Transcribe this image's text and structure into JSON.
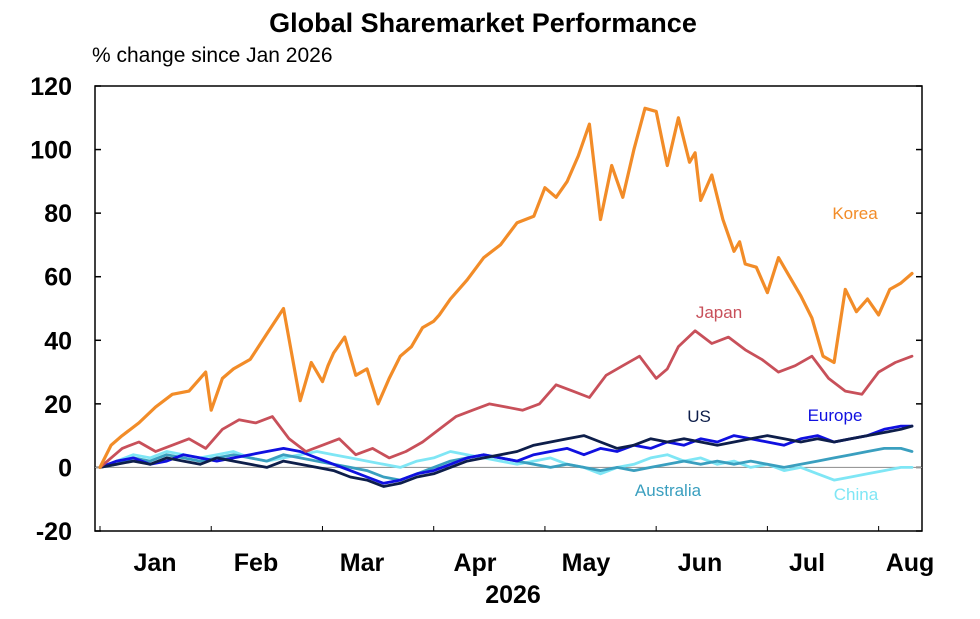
{
  "chart_data": {
    "type": "line",
    "title": "Global Sharemarket Performance",
    "subtitle": "% change since Jan 2026",
    "x_axis": {
      "months": [
        "Jan",
        "Feb",
        "Mar",
        "Apr",
        "May",
        "Jun",
        "Jul",
        "Aug"
      ],
      "year_label": "2026",
      "range": [
        0,
        7.3
      ]
    },
    "y_axis": {
      "range": [
        -20,
        120
      ],
      "ticks": [
        -20,
        0,
        20,
        40,
        60,
        80,
        100,
        120
      ]
    },
    "zero_line": true,
    "series": [
      {
        "name": "Korea",
        "color": "#F28C28",
        "x": [
          0,
          0.1,
          0.2,
          0.35,
          0.5,
          0.65,
          0.8,
          0.95,
          1.0,
          1.1,
          1.2,
          1.35,
          1.5,
          1.65,
          1.8,
          1.9,
          2.0,
          2.05,
          2.1,
          2.2,
          2.3,
          2.4,
          2.5,
          2.6,
          2.7,
          2.8,
          2.9,
          3.0,
          3.05,
          3.15,
          3.3,
          3.45,
          3.6,
          3.75,
          3.9,
          4.0,
          4.1,
          4.2,
          4.3,
          4.4,
          4.5,
          4.6,
          4.7,
          4.8,
          4.9,
          5.0,
          5.1,
          5.2,
          5.3,
          5.35,
          5.4,
          5.5,
          5.6,
          5.7,
          5.75,
          5.8,
          5.9,
          6.0,
          6.1,
          6.2,
          6.3,
          6.4,
          6.5,
          6.6,
          6.7,
          6.8,
          6.9,
          7.0,
          7.05,
          7.1,
          7.2,
          7.3
        ],
        "values": [
          0,
          7,
          10,
          14,
          19,
          23,
          24,
          30,
          18,
          28,
          31,
          34,
          42,
          50,
          21,
          33,
          27,
          32,
          36,
          41,
          29,
          31,
          20,
          28,
          35,
          38,
          44,
          46,
          48,
          53,
          59,
          66,
          70,
          77,
          79,
          88,
          85,
          90,
          98,
          108,
          78,
          95,
          85,
          100,
          113,
          112,
          95,
          110,
          96,
          99,
          84,
          92,
          78,
          68,
          71,
          64,
          63,
          55,
          66,
          60,
          54,
          47,
          35,
          33,
          56,
          49,
          53,
          48,
          52,
          56,
          58,
          61
        ]
      },
      {
        "name": "Japan",
        "color": "#C8505A",
        "x": [
          0,
          0.1,
          0.2,
          0.35,
          0.5,
          0.65,
          0.8,
          0.95,
          1.1,
          1.25,
          1.4,
          1.55,
          1.7,
          1.85,
          2.0,
          2.15,
          2.3,
          2.45,
          2.6,
          2.75,
          2.9,
          3.05,
          3.2,
          3.35,
          3.5,
          3.65,
          3.8,
          3.95,
          4.1,
          4.25,
          4.4,
          4.55,
          4.7,
          4.85,
          5.0,
          5.1,
          5.2,
          5.35,
          5.5,
          5.65,
          5.8,
          5.95,
          6.1,
          6.25,
          6.4,
          6.55,
          6.7,
          6.85,
          7.0,
          7.15,
          7.3
        ],
        "values": [
          0,
          3,
          6,
          8,
          5,
          7,
          9,
          6,
          12,
          15,
          14,
          16,
          9,
          5,
          7,
          9,
          4,
          6,
          3,
          5,
          8,
          12,
          16,
          18,
          20,
          19,
          18,
          20,
          26,
          24,
          22,
          29,
          32,
          35,
          28,
          31,
          38,
          43,
          39,
          41,
          37,
          34,
          30,
          32,
          35,
          28,
          24,
          23,
          30,
          33,
          35
        ]
      },
      {
        "name": "US",
        "color": "#0E1E4A",
        "x": [
          0,
          0.15,
          0.3,
          0.45,
          0.6,
          0.75,
          0.9,
          1.05,
          1.2,
          1.35,
          1.5,
          1.65,
          1.8,
          1.95,
          2.1,
          2.25,
          2.4,
          2.55,
          2.7,
          2.85,
          3.0,
          3.15,
          3.3,
          3.45,
          3.6,
          3.75,
          3.9,
          4.05,
          4.2,
          4.35,
          4.5,
          4.65,
          4.8,
          4.95,
          5.1,
          5.25,
          5.4,
          5.55,
          5.7,
          5.85,
          6.0,
          6.15,
          6.3,
          6.45,
          6.6,
          6.75,
          6.9,
          7.05,
          7.2,
          7.3
        ],
        "values": [
          0,
          1,
          2,
          1,
          3,
          2,
          1,
          3,
          2,
          1,
          0,
          2,
          1,
          0,
          -1,
          -3,
          -4,
          -6,
          -5,
          -3,
          -2,
          0,
          2,
          3,
          4,
          5,
          7,
          8,
          9,
          10,
          8,
          6,
          7,
          9,
          8,
          9,
          8,
          7,
          8,
          9,
          10,
          9,
          8,
          9,
          8,
          9,
          10,
          11,
          12,
          13
        ]
      },
      {
        "name": "Europe",
        "color": "#1010E0",
        "x": [
          0,
          0.15,
          0.3,
          0.45,
          0.6,
          0.75,
          0.9,
          1.05,
          1.2,
          1.35,
          1.5,
          1.65,
          1.8,
          1.95,
          2.1,
          2.25,
          2.4,
          2.55,
          2.7,
          2.85,
          3.0,
          3.15,
          3.3,
          3.45,
          3.6,
          3.75,
          3.9,
          4.05,
          4.2,
          4.35,
          4.5,
          4.65,
          4.8,
          4.95,
          5.1,
          5.25,
          5.4,
          5.55,
          5.7,
          5.85,
          6.0,
          6.15,
          6.3,
          6.45,
          6.6,
          6.75,
          6.9,
          7.05,
          7.2,
          7.3
        ],
        "values": [
          0,
          2,
          3,
          1,
          2,
          4,
          3,
          2,
          3,
          4,
          5,
          6,
          5,
          3,
          1,
          -1,
          -3,
          -5,
          -4,
          -2,
          -1,
          1,
          3,
          4,
          3,
          2,
          4,
          5,
          6,
          4,
          6,
          5,
          7,
          6,
          8,
          7,
          9,
          8,
          10,
          9,
          8,
          7,
          9,
          10,
          8,
          9,
          10,
          12,
          13,
          13
        ]
      },
      {
        "name": "Australia",
        "color": "#3A9FBF",
        "x": [
          0,
          0.15,
          0.3,
          0.45,
          0.6,
          0.75,
          0.9,
          1.05,
          1.2,
          1.35,
          1.5,
          1.65,
          1.8,
          1.95,
          2.1,
          2.25,
          2.4,
          2.55,
          2.7,
          2.85,
          3.0,
          3.15,
          3.3,
          3.45,
          3.6,
          3.75,
          3.9,
          4.05,
          4.2,
          4.35,
          4.5,
          4.65,
          4.8,
          4.95,
          5.1,
          5.25,
          5.4,
          5.55,
          5.7,
          5.85,
          6.0,
          6.15,
          6.3,
          6.45,
          6.6,
          6.75,
          6.9,
          7.05,
          7.2,
          7.3
        ],
        "values": [
          0,
          1,
          3,
          2,
          4,
          3,
          2,
          3,
          4,
          3,
          2,
          4,
          3,
          2,
          1,
          0,
          -1,
          -3,
          -4,
          -2,
          0,
          2,
          3,
          4,
          3,
          2,
          1,
          0,
          1,
          0,
          -1,
          0,
          -1,
          0,
          1,
          2,
          1,
          2,
          1,
          2,
          1,
          0,
          1,
          2,
          3,
          4,
          5,
          6,
          6,
          5
        ]
      },
      {
        "name": "China",
        "color": "#7FE6F5",
        "x": [
          0,
          0.15,
          0.3,
          0.45,
          0.6,
          0.75,
          0.9,
          1.05,
          1.2,
          1.35,
          1.5,
          1.65,
          1.8,
          1.95,
          2.1,
          2.25,
          2.4,
          2.55,
          2.7,
          2.85,
          3.0,
          3.15,
          3.3,
          3.45,
          3.6,
          3.75,
          3.9,
          4.05,
          4.2,
          4.35,
          4.5,
          4.65,
          4.8,
          4.95,
          5.1,
          5.25,
          5.4,
          5.55,
          5.7,
          5.85,
          6.0,
          6.15,
          6.3,
          6.45,
          6.6,
          6.75,
          6.9,
          7.05,
          7.2,
          7.3
        ],
        "values": [
          0,
          2,
          4,
          3,
          5,
          4,
          3,
          4,
          5,
          3,
          2,
          3,
          4,
          5,
          4,
          3,
          2,
          1,
          0,
          2,
          3,
          5,
          4,
          3,
          2,
          1,
          2,
          3,
          1,
          0,
          -2,
          0,
          1,
          3,
          4,
          2,
          3,
          1,
          2,
          0,
          1,
          -1,
          0,
          -2,
          -4,
          -3,
          -2,
          -1,
          0,
          0
        ]
      }
    ],
    "labels": [
      {
        "series": "Korea",
        "text": "Korea"
      },
      {
        "series": "Japan",
        "text": "Japan"
      },
      {
        "series": "US",
        "text": "US"
      },
      {
        "series": "Europe",
        "text": "Europe"
      },
      {
        "series": "Australia",
        "text": "Australia"
      },
      {
        "series": "China",
        "text": "China"
      }
    ]
  }
}
